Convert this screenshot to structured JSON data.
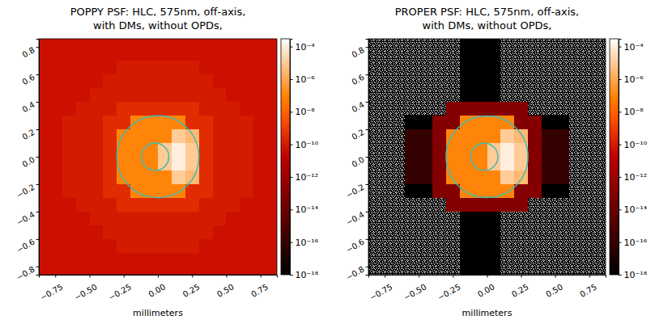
{
  "chart_data": [
    {
      "type": "heatmap",
      "title": "POPPY PSF: HLC, 575nm, off-axis,\nwith DMs, without OPDs,",
      "x_label": "millimeters",
      "xlim": [
        -0.87,
        0.87
      ],
      "ylim": [
        -0.86,
        0.86
      ],
      "xticks": [
        {
          "value": -0.75,
          "label": "−0.75"
        },
        {
          "value": -0.5,
          "label": "−0.50"
        },
        {
          "value": -0.25,
          "label": "−0.25"
        },
        {
          "value": 0,
          "label": "0.00"
        },
        0.25,
        {
          "value": 0.5,
          "label": "0.50"
        },
        0.75
      ],
      "yticks": [
        {
          "value": -0.8,
          "label": "−0.8"
        },
        {
          "value": -0.6,
          "label": "−0.6"
        },
        {
          "value": -0.4,
          "label": "−0.4"
        },
        {
          "value": -0.2,
          "label": "−0.2"
        },
        {
          "value": 0,
          "label": "0.0"
        },
        0.2,
        0.4,
        0.6,
        0.8
      ],
      "x": [
        -0.85,
        -0.75,
        -0.65,
        -0.55,
        -0.45,
        -0.35,
        -0.25,
        -0.15,
        -0.05,
        0.05,
        0.15,
        0.25,
        0.35,
        0.45,
        0.55,
        0.65,
        0.75,
        0.85
      ],
      "y": [
        0.85,
        0.75,
        0.65,
        0.55,
        0.45,
        0.35,
        0.25,
        0.15,
        0.05,
        -0.05,
        -0.15,
        -0.25,
        -0.35,
        -0.45,
        -0.55,
        -0.65,
        -0.75,
        -0.85
      ],
      "z": [
        [
          5e-11,
          5e-11,
          5e-11,
          5e-11,
          5e-11,
          5e-11,
          5e-11,
          5e-11,
          5e-11,
          5e-11,
          5e-11,
          5e-11,
          5e-11,
          5e-11,
          5e-11,
          5e-11,
          5e-11,
          5e-11
        ],
        [
          5e-11,
          5e-11,
          5e-11,
          5e-11,
          5e-11,
          5e-11,
          5e-11,
          5e-11,
          5e-11,
          5e-11,
          5e-11,
          5e-11,
          5e-11,
          5e-11,
          5e-11,
          5e-11,
          5e-11,
          5e-11
        ],
        [
          5e-11,
          5e-11,
          5e-11,
          5e-11,
          5e-11,
          5e-11,
          1e-10,
          1e-10,
          1e-10,
          1e-10,
          1e-10,
          1e-10,
          5e-11,
          5e-11,
          5e-11,
          5e-11,
          5e-11,
          5e-11
        ],
        [
          5e-11,
          5e-11,
          5e-11,
          5e-11,
          5e-11,
          1e-10,
          1e-10,
          1e-10,
          1e-10,
          1e-10,
          1e-10,
          1e-10,
          1e-10,
          5e-11,
          5e-11,
          5e-11,
          5e-11,
          5e-11
        ],
        [
          5e-11,
          5e-11,
          5e-11,
          5e-11,
          1e-10,
          1e-10,
          1e-10,
          1e-10,
          1e-10,
          1e-10,
          1e-10,
          1e-10,
          1e-10,
          1e-10,
          5e-11,
          5e-11,
          5e-11,
          5e-11
        ],
        [
          5e-11,
          5e-11,
          5e-11,
          1e-10,
          1e-10,
          1e-10,
          3e-10,
          3e-10,
          3e-10,
          3e-10,
          3e-10,
          3e-10,
          1e-10,
          1e-10,
          1e-10,
          5e-11,
          5e-11,
          5e-11
        ],
        [
          5e-11,
          5e-11,
          1e-10,
          1e-10,
          1e-10,
          3e-10,
          3e-10,
          1e-07,
          1e-07,
          1e-07,
          1e-07,
          3e-10,
          3e-10,
          1e-10,
          1e-10,
          1e-10,
          5e-11,
          5e-11
        ],
        [
          5e-11,
          5e-11,
          1e-10,
          1e-10,
          1e-10,
          3e-10,
          1e-07,
          1e-07,
          1e-07,
          1e-07,
          1e-05,
          3e-06,
          3e-10,
          1e-10,
          1e-10,
          1e-10,
          5e-11,
          5e-11
        ],
        [
          5e-11,
          5e-11,
          1e-10,
          1e-10,
          1e-10,
          3e-10,
          1e-07,
          1e-07,
          1e-07,
          1e-05,
          0.0001,
          1e-05,
          3e-10,
          1e-10,
          1e-10,
          1e-10,
          5e-11,
          5e-11
        ],
        [
          5e-11,
          5e-11,
          1e-10,
          1e-10,
          1e-10,
          3e-10,
          1e-07,
          1e-07,
          1e-07,
          1e-05,
          0.0001,
          1e-05,
          3e-10,
          1e-10,
          1e-10,
          1e-10,
          5e-11,
          5e-11
        ],
        [
          5e-11,
          5e-11,
          1e-10,
          1e-10,
          1e-10,
          3e-10,
          1e-07,
          1e-07,
          1e-07,
          1e-07,
          1e-05,
          3e-06,
          3e-10,
          1e-10,
          1e-10,
          1e-10,
          5e-11,
          5e-11
        ],
        [
          5e-11,
          5e-11,
          1e-10,
          1e-10,
          1e-10,
          3e-10,
          3e-10,
          1e-07,
          1e-07,
          1e-07,
          1e-07,
          3e-10,
          3e-10,
          1e-10,
          1e-10,
          1e-10,
          5e-11,
          5e-11
        ],
        [
          5e-11,
          5e-11,
          5e-11,
          1e-10,
          1e-10,
          1e-10,
          3e-10,
          3e-10,
          3e-10,
          3e-10,
          3e-10,
          3e-10,
          1e-10,
          1e-10,
          1e-10,
          5e-11,
          5e-11,
          5e-11
        ],
        [
          5e-11,
          5e-11,
          5e-11,
          5e-11,
          1e-10,
          1e-10,
          1e-10,
          1e-10,
          1e-10,
          1e-10,
          1e-10,
          1e-10,
          1e-10,
          1e-10,
          5e-11,
          5e-11,
          5e-11,
          5e-11
        ],
        [
          5e-11,
          5e-11,
          5e-11,
          5e-11,
          5e-11,
          1e-10,
          1e-10,
          1e-10,
          1e-10,
          1e-10,
          1e-10,
          1e-10,
          1e-10,
          5e-11,
          5e-11,
          5e-11,
          5e-11,
          5e-11
        ],
        [
          5e-11,
          5e-11,
          5e-11,
          5e-11,
          5e-11,
          5e-11,
          1e-10,
          1e-10,
          1e-10,
          1e-10,
          1e-10,
          1e-10,
          5e-11,
          5e-11,
          5e-11,
          5e-11,
          5e-11,
          5e-11
        ],
        [
          5e-11,
          5e-11,
          5e-11,
          5e-11,
          5e-11,
          5e-11,
          5e-11,
          5e-11,
          5e-11,
          5e-11,
          5e-11,
          5e-11,
          5e-11,
          5e-11,
          5e-11,
          5e-11,
          5e-11,
          5e-11
        ],
        [
          5e-11,
          5e-11,
          5e-11,
          5e-11,
          5e-11,
          5e-11,
          5e-11,
          5e-11,
          5e-11,
          5e-11,
          5e-11,
          5e-11,
          5e-11,
          5e-11,
          5e-11,
          5e-11,
          5e-11,
          5e-11
        ]
      ],
      "colorbar": {
        "range": [
          1e-18,
          0.0003
        ],
        "log": true,
        "ticks": [
          {
            "value": 1e-18,
            "label": "10⁻¹⁸"
          },
          {
            "value": 1e-16,
            "label": "10⁻¹⁶"
          },
          {
            "value": 1e-14,
            "label": "10⁻¹⁴"
          },
          {
            "value": 1e-12,
            "label": "10⁻¹²"
          },
          {
            "value": 1e-10,
            "label": "10⁻¹⁰"
          },
          {
            "value": 1e-08,
            "label": "10⁻⁸"
          },
          {
            "value": 1e-06,
            "label": "10⁻⁶"
          },
          {
            "value": 0.0001,
            "label": "10⁻⁴"
          }
        ]
      },
      "circles": [
        {
          "x": 0,
          "y": 0,
          "r": 0.3,
          "color": "#3dbdb0"
        },
        {
          "x": -0.02,
          "y": 0,
          "r": 0.1,
          "color": "#3dbdb0"
        }
      ]
    },
    {
      "type": "heatmap",
      "title": "PROPER PSF: HLC, 575nm, off-axis,\nwith DMs, without OPDs,",
      "x_label": "millimeters",
      "xlim": [
        -0.87,
        0.87
      ],
      "ylim": [
        -0.86,
        0.86
      ],
      "xticks": [
        {
          "value": -0.75,
          "label": "−0.75"
        },
        {
          "value": -0.5,
          "label": "−0.50"
        },
        {
          "value": -0.25,
          "label": "−0.25"
        },
        {
          "value": 0,
          "label": "0.00"
        },
        0.25,
        {
          "value": 0.5,
          "label": "0.50"
        },
        0.75
      ],
      "yticks": [
        {
          "value": -0.8,
          "label": "−0.8"
        },
        {
          "value": -0.6,
          "label": "−0.6"
        },
        {
          "value": -0.4,
          "label": "−0.4"
        },
        {
          "value": -0.2,
          "label": "−0.2"
        },
        {
          "value": 0,
          "label": "0.0"
        },
        0.2,
        0.4,
        0.6,
        0.8
      ],
      "x": [
        -0.85,
        -0.75,
        -0.65,
        -0.55,
        -0.45,
        -0.35,
        -0.25,
        -0.15,
        -0.05,
        0.05,
        0.15,
        0.25,
        0.35,
        0.45,
        0.55,
        0.65,
        0.75,
        0.85
      ],
      "y": [
        0.85,
        0.75,
        0.65,
        0.55,
        0.45,
        0.35,
        0.25,
        0.15,
        0.05,
        -0.05,
        -0.15,
        -0.25,
        -0.35,
        -0.45,
        -0.55,
        -0.65,
        -0.75,
        -0.85
      ],
      "z": [
        [
          null,
          null,
          null,
          null,
          null,
          null,
          null,
          1e-18,
          1e-18,
          1e-18,
          null,
          null,
          null,
          null,
          null,
          null,
          null,
          null
        ],
        [
          null,
          null,
          null,
          null,
          null,
          null,
          null,
          1e-18,
          1e-18,
          1e-18,
          null,
          null,
          null,
          null,
          null,
          null,
          null,
          null
        ],
        [
          null,
          null,
          null,
          null,
          null,
          null,
          null,
          1e-18,
          1e-18,
          1e-18,
          null,
          null,
          null,
          null,
          null,
          null,
          null,
          null
        ],
        [
          null,
          null,
          null,
          null,
          null,
          null,
          null,
          1e-18,
          1e-18,
          1e-18,
          null,
          null,
          null,
          null,
          null,
          null,
          null,
          null
        ],
        [
          null,
          null,
          null,
          null,
          null,
          null,
          null,
          1e-18,
          1e-18,
          1e-18,
          null,
          null,
          null,
          null,
          null,
          null,
          null,
          null
        ],
        [
          null,
          null,
          null,
          null,
          null,
          null,
          1e-13,
          1e-13,
          1e-13,
          1e-13,
          1e-13,
          1e-13,
          null,
          null,
          null,
          null,
          null,
          null
        ],
        [
          null,
          null,
          null,
          1e-18,
          1e-18,
          1e-13,
          1e-13,
          1e-07,
          1e-07,
          1e-07,
          1e-07,
          1e-13,
          1e-13,
          1e-18,
          1e-18,
          null,
          null,
          null
        ],
        [
          null,
          null,
          null,
          1e-16,
          1e-16,
          1e-13,
          1e-07,
          1e-07,
          1e-07,
          1e-07,
          1e-05,
          3e-06,
          1e-13,
          1e-16,
          1e-16,
          null,
          null,
          null
        ],
        [
          null,
          null,
          null,
          1e-16,
          1e-16,
          1e-13,
          1e-07,
          1e-07,
          1e-07,
          1e-05,
          0.0001,
          1e-05,
          1e-13,
          1e-16,
          1e-16,
          null,
          null,
          null
        ],
        [
          null,
          null,
          null,
          1e-16,
          1e-16,
          1e-13,
          1e-07,
          1e-07,
          1e-07,
          1e-05,
          0.0001,
          1e-05,
          1e-13,
          1e-16,
          1e-16,
          null,
          null,
          null
        ],
        [
          null,
          null,
          null,
          1e-16,
          1e-16,
          1e-13,
          1e-07,
          1e-07,
          1e-07,
          1e-07,
          1e-05,
          3e-06,
          1e-13,
          1e-16,
          1e-16,
          null,
          null,
          null
        ],
        [
          null,
          null,
          null,
          1e-18,
          1e-18,
          1e-13,
          1e-13,
          1e-07,
          1e-07,
          1e-07,
          1e-07,
          1e-13,
          1e-13,
          1e-18,
          1e-18,
          null,
          null,
          null
        ],
        [
          null,
          null,
          null,
          null,
          null,
          null,
          1e-13,
          1e-13,
          1e-13,
          1e-13,
          1e-13,
          1e-13,
          null,
          null,
          null,
          null,
          null,
          null
        ],
        [
          null,
          null,
          null,
          null,
          null,
          null,
          null,
          1e-18,
          1e-18,
          1e-18,
          null,
          null,
          null,
          null,
          null,
          null,
          null,
          null
        ],
        [
          null,
          null,
          null,
          null,
          null,
          null,
          null,
          1e-18,
          1e-18,
          1e-18,
          null,
          null,
          null,
          null,
          null,
          null,
          null,
          null
        ],
        [
          null,
          null,
          null,
          null,
          null,
          null,
          null,
          1e-18,
          1e-18,
          1e-18,
          null,
          null,
          null,
          null,
          null,
          null,
          null,
          null
        ],
        [
          null,
          null,
          null,
          null,
          null,
          null,
          null,
          1e-18,
          1e-18,
          1e-18,
          null,
          null,
          null,
          null,
          null,
          null,
          null,
          null
        ],
        [
          null,
          null,
          null,
          null,
          null,
          null,
          null,
          1e-18,
          1e-18,
          1e-18,
          null,
          null,
          null,
          null,
          null,
          null,
          null,
          null
        ]
      ],
      "colorbar": {
        "range": [
          1e-18,
          0.0003
        ],
        "log": true,
        "ticks": [
          {
            "value": 1e-18,
            "label": "10⁻¹⁸"
          },
          {
            "value": 1e-16,
            "label": "10⁻¹⁶"
          },
          {
            "value": 1e-14,
            "label": "10⁻¹⁴"
          },
          {
            "value": 1e-12,
            "label": "10⁻¹²"
          },
          {
            "value": 1e-10,
            "label": "10⁻¹⁰"
          },
          {
            "value": 1e-08,
            "label": "10⁻⁸"
          },
          {
            "value": 1e-06,
            "label": "10⁻⁶"
          },
          {
            "value": 0.0001,
            "label": "10⁻⁴"
          }
        ]
      },
      "circles": [
        {
          "x": 0,
          "y": 0,
          "r": 0.3,
          "color": "#3dbdb0"
        },
        {
          "x": -0.02,
          "y": 0,
          "r": 0.1,
          "color": "#3dbdb0"
        }
      ]
    }
  ]
}
